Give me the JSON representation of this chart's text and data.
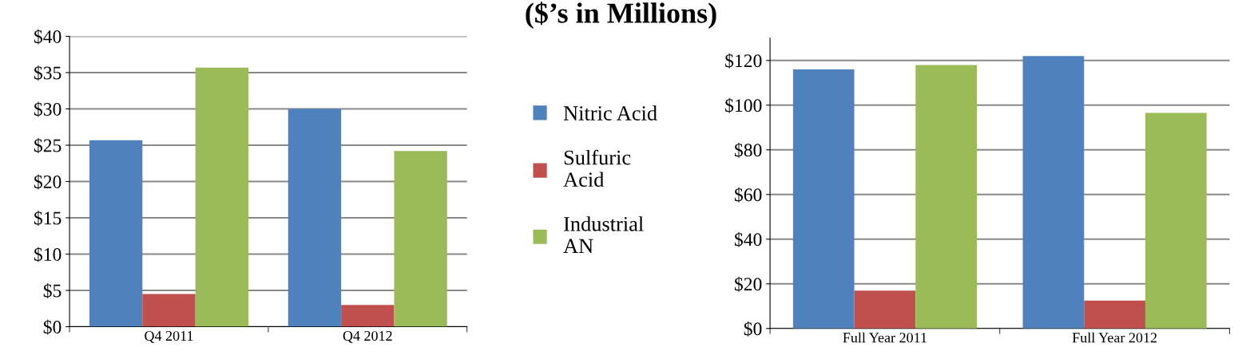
{
  "chart_data": [
    {
      "type": "bar",
      "categories": [
        "Q4 2011",
        "Q4 2012"
      ],
      "series": [
        {
          "name": "Nitric Acid",
          "color": "#4f81bd",
          "values": [
            25.7,
            30.0
          ]
        },
        {
          "name": "Sulfuric Acid",
          "color": "#c0504d",
          "values": [
            4.5,
            3.0
          ]
        },
        {
          "name": "Industrial AN",
          "color": "#9bbb59",
          "values": [
            35.7,
            24.2
          ]
        }
      ],
      "ylim": [
        0,
        40
      ],
      "yticks": [
        {
          "value": 0,
          "label": "$0"
        },
        {
          "value": 5,
          "label": "$5"
        },
        {
          "value": 10,
          "label": "$10"
        },
        {
          "value": 15,
          "label": "$15"
        },
        {
          "value": 20,
          "label": "$20"
        },
        {
          "value": 25,
          "label": "$25"
        },
        {
          "value": 30,
          "label": "$30"
        },
        {
          "value": 35,
          "label": "$35"
        },
        {
          "value": 40,
          "label": "$40"
        }
      ],
      "grid": "y",
      "legend": "right"
    },
    {
      "type": "other",
      "title": "($’s in Millions)"
    },
    {
      "type": "bar",
      "categories": [
        "Full Year 2011",
        "Full Year 2012"
      ],
      "series": [
        {
          "color": "#4f81bd",
          "values": [
            116,
            122
          ]
        },
        {
          "color": "#c0504d",
          "values": [
            17,
            12.5
          ]
        },
        {
          "color": "#9bbb59",
          "values": [
            118,
            96.5
          ]
        }
      ],
      "ylim": [
        0,
        130
      ],
      "yticks": [
        {
          "value": 0,
          "label": "$0"
        },
        {
          "value": 20,
          "label": "$20"
        },
        {
          "value": 40,
          "label": "$40"
        },
        {
          "value": 60,
          "label": "$60"
        },
        {
          "value": 80,
          "label": "$80"
        },
        {
          "value": 100,
          "label": "$100"
        },
        {
          "value": 120,
          "label": "$120"
        }
      ],
      "grid": "y"
    }
  ]
}
